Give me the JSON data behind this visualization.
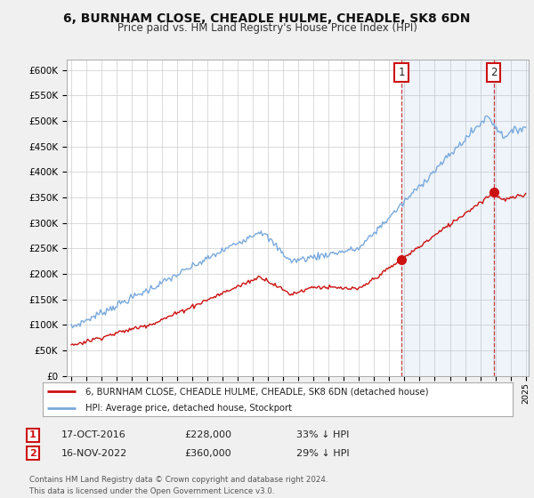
{
  "title": "6, BURNHAM CLOSE, CHEADLE HULME, CHEADLE, SK8 6DN",
  "subtitle": "Price paid vs. HM Land Registry's House Price Index (HPI)",
  "title_fontsize": 10,
  "subtitle_fontsize": 8.5,
  "bg_color": "#f0f0f0",
  "plot_bg_color": "#ffffff",
  "hpi_color": "#7aaadd",
  "price_color": "#cc1111",
  "legend_label_red": "6, BURNHAM CLOSE, CHEADLE HULME, CHEADLE, SK8 6DN (detached house)",
  "legend_label_blue": "HPI: Average price, detached house, Stockport",
  "footer": "Contains HM Land Registry data © Crown copyright and database right 2024.\nThis data is licensed under the Open Government Licence v3.0.",
  "ylim": [
    0,
    620000
  ],
  "yticks": [
    0,
    50000,
    100000,
    150000,
    200000,
    250000,
    300000,
    350000,
    400000,
    450000,
    500000,
    550000,
    600000
  ],
  "ytick_labels": [
    "£0",
    "£50K",
    "£100K",
    "£150K",
    "£200K",
    "£250K",
    "£300K",
    "£350K",
    "£400K",
    "£450K",
    "£500K",
    "£550K",
    "£600K"
  ],
  "p1_year": 2016.8,
  "p1_price": 228000,
  "p2_year": 2022.88,
  "p2_price": 360000
}
